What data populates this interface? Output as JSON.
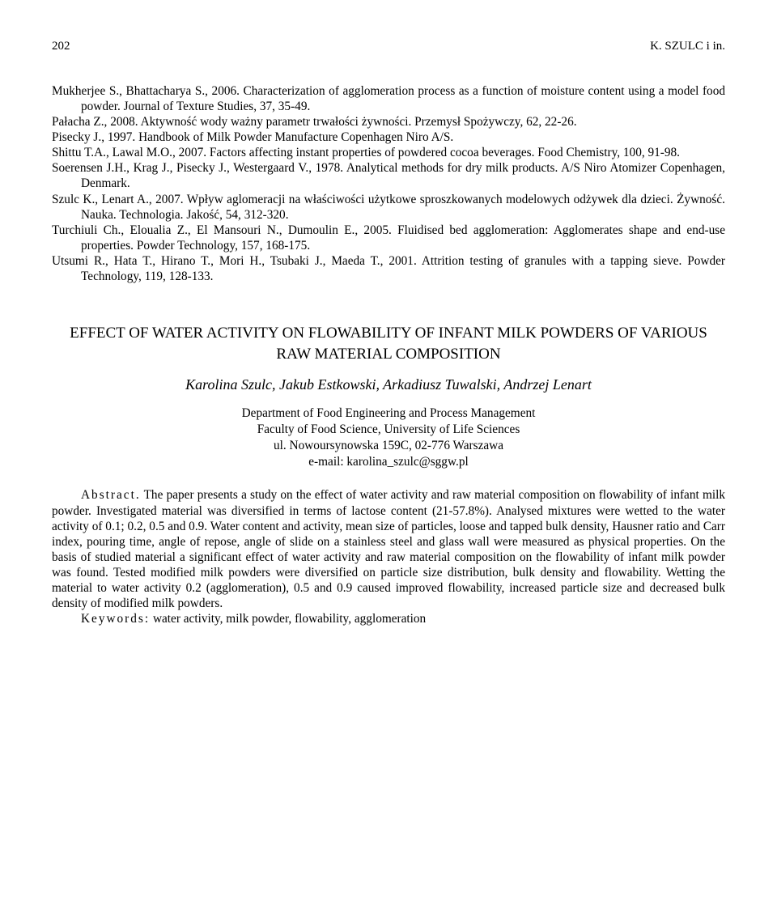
{
  "header": {
    "page_number": "202",
    "running_head": "K. SZULC i in."
  },
  "references": [
    "Mukherjee S., Bhattacharya S., 2006. Characterization of agglomeration process as a function of moisture content using a model food powder. Journal of Texture Studies, 37, 35-49.",
    "Pałacha Z., 2008. Aktywność wody ważny parametr trwałości żywności. Przemysł Spożywczy, 62, 22-26.",
    "Pisecky J., 1997. Handbook of Milk Powder Manufacture Copenhagen Niro A/S.",
    "Shittu T.A., Lawal M.O., 2007. Factors affecting instant properties of powdered cocoa beverages. Food Chemistry, 100, 91-98.",
    "Soerensen J.H., Krag J., Pisecky J., Westergaard V., 1978. Analytical methods for dry milk products. A/S Niro Atomizer Copenhagen, Denmark.",
    "Szulc K., Lenart A., 2007. Wpływ aglomeracji na właściwości użytkowe sproszkowanych modelowych odżywek dla dzieci. Żywność. Nauka. Technologia. Jakość, 54, 312-320.",
    "Turchiuli Ch., Eloualia Z., El Mansouri N., Dumoulin E., 2005. Fluidised bed agglomeration: Agglomerates shape and end-use properties. Powder Technology, 157, 168-175.",
    "Utsumi R., Hata T., Hirano T., Mori H., Tsubaki J., Maeda T., 2001. Attrition testing of granules with a tapping sieve. Powder Technology, 119, 128-133."
  ],
  "article": {
    "title": "EFFECT OF WATER ACTIVITY ON FLOWABILITY OF INFANT MILK POWDERS OF VARIOUS RAW MATERIAL COMPOSITION",
    "authors": "Karolina Szulc, Jakub Estkowski, Arkadiusz Tuwalski, Andrzej Lenart",
    "affiliation_line1": "Department of Food Engineering and Process Management",
    "affiliation_line2": "Faculty of Food Science, University of Life Sciences",
    "affiliation_line3": "ul. Nowoursynowska 159C, 02-776 Warszawa",
    "affiliation_line4": "e-mail: karolina_szulc@sggw.pl",
    "abstract_label": "Abstract.",
    "abstract_text": " The paper presents a study on the effect of water activity and raw material composition on flowability of infant milk powder. Investigated material was diversified in terms of lactose content (21-57.8%). Analysed mixtures were wetted to the water activity of 0.1; 0.2, 0.5 and 0.9. Water content and activity, mean size of particles, loose and tapped bulk density, Hausner ratio and Carr index, pouring time, angle of repose, angle of slide on a stainless steel and glass wall were measured as physical properties. On the basis of studied material a significant effect of water activity and raw material composition on the flowability of infant milk powder was found. Tested modified milk powders were diversified on particle size distribution, bulk density and flowability. Wetting the material to water activity 0.2 (agglomeration), 0.5 and 0.9 caused improved flowability, increased particle size and decreased bulk density of modified milk powders.",
    "keywords_label": "Keywords:",
    "keywords_text": " water activity, milk powder, flowability, agglomeration"
  }
}
